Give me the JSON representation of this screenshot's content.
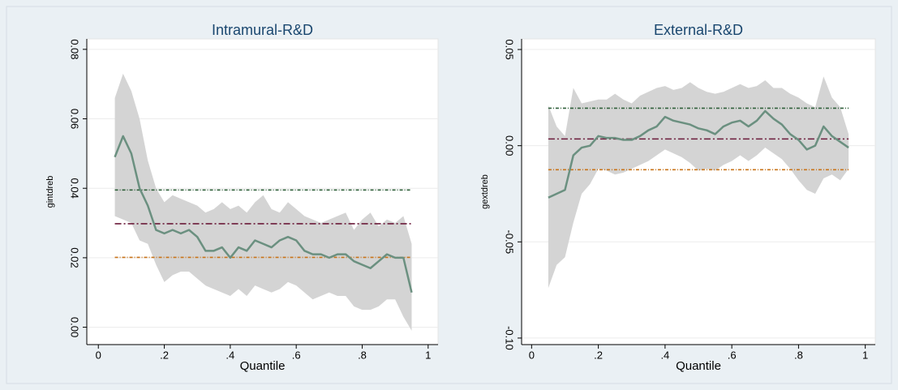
{
  "chart_data": [
    {
      "type": "line",
      "title": "Intramural-R&D",
      "x_label": "Quantile",
      "y_label": "gintdreb",
      "x": [
        0.05,
        0.075,
        0.1,
        0.125,
        0.15,
        0.175,
        0.2,
        0.225,
        0.25,
        0.275,
        0.3,
        0.325,
        0.35,
        0.375,
        0.4,
        0.425,
        0.45,
        0.475,
        0.5,
        0.525,
        0.55,
        0.575,
        0.6,
        0.625,
        0.65,
        0.675,
        0.7,
        0.725,
        0.75,
        0.775,
        0.8,
        0.825,
        0.85,
        0.875,
        0.9,
        0.925,
        0.95
      ],
      "series": [
        {
          "color": "#6b9080",
          "values": [
            0.049,
            0.055,
            0.05,
            0.04,
            0.035,
            0.028,
            0.027,
            0.028,
            0.027,
            0.028,
            0.026,
            0.022,
            0.022,
            0.023,
            0.02,
            0.023,
            0.022,
            0.025,
            0.024,
            0.023,
            0.025,
            0.026,
            0.025,
            0.022,
            0.021,
            0.021,
            0.02,
            0.021,
            0.021,
            0.019,
            0.018,
            0.017,
            0.019,
            0.021,
            0.02,
            0.02,
            0.01
          ]
        }
      ],
      "band": {
        "color": "#d4d4d4",
        "upper": [
          0.066,
          0.073,
          0.068,
          0.06,
          0.048,
          0.04,
          0.036,
          0.038,
          0.037,
          0.036,
          0.035,
          0.033,
          0.034,
          0.036,
          0.034,
          0.035,
          0.033,
          0.036,
          0.038,
          0.034,
          0.033,
          0.036,
          0.034,
          0.032,
          0.031,
          0.03,
          0.031,
          0.032,
          0.033,
          0.028,
          0.031,
          0.033,
          0.029,
          0.031,
          0.03,
          0.032,
          0.024
        ],
        "lower": [
          0.032,
          0.031,
          0.03,
          0.025,
          0.024,
          0.018,
          0.013,
          0.015,
          0.016,
          0.016,
          0.014,
          0.012,
          0.011,
          0.01,
          0.009,
          0.011,
          0.009,
          0.012,
          0.011,
          0.01,
          0.011,
          0.013,
          0.012,
          0.01,
          0.008,
          0.009,
          0.01,
          0.009,
          0.009,
          0.006,
          0.005,
          0.005,
          0.006,
          0.008,
          0.008,
          0.003,
          -0.001
        ]
      },
      "reference_lines": [
        {
          "value": 0.0395,
          "color": "#2f5f3a",
          "dash": "4 2 1 2"
        },
        {
          "value": 0.0298,
          "color": "#6b1b3a",
          "dash": "8 3 2 3"
        },
        {
          "value": 0.0201,
          "color": "#c8741a",
          "dash": "4 2 1 2"
        }
      ],
      "xlim": [
        -0.035,
        1.03
      ],
      "ylim": [
        -0.005,
        0.083
      ],
      "xticks": [
        0,
        {
          "value": 0.2,
          "label": ".2"
        },
        {
          "value": 0.4,
          "label": ".4"
        },
        {
          "value": 0.6,
          "label": ".6"
        },
        {
          "value": 0.8,
          "label": ".8"
        },
        1
      ],
      "yticks": [
        {
          "value": 0,
          "label": "0.00"
        },
        {
          "value": 0.02,
          "label": "0.02"
        },
        {
          "value": 0.04,
          "label": "0.04"
        },
        {
          "value": 0.06,
          "label": "0.06"
        },
        {
          "value": 0.08,
          "label": "0.08"
        }
      ],
      "grid": true
    },
    {
      "type": "line",
      "title": "External-R&D",
      "x_label": "Quantile",
      "y_label": "gextdreb",
      "x": [
        0.05,
        0.075,
        0.1,
        0.125,
        0.15,
        0.175,
        0.2,
        0.225,
        0.25,
        0.275,
        0.3,
        0.325,
        0.35,
        0.375,
        0.4,
        0.425,
        0.45,
        0.475,
        0.5,
        0.525,
        0.55,
        0.575,
        0.6,
        0.625,
        0.65,
        0.675,
        0.7,
        0.725,
        0.75,
        0.775,
        0.8,
        0.825,
        0.85,
        0.875,
        0.9,
        0.925,
        0.95
      ],
      "series": [
        {
          "color": "#6b9080",
          "values": [
            -0.027,
            -0.025,
            -0.023,
            -0.005,
            -0.001,
            0.0,
            0.005,
            0.004,
            0.004,
            0.003,
            0.003,
            0.005,
            0.008,
            0.01,
            0.015,
            0.013,
            0.012,
            0.011,
            0.009,
            0.008,
            0.006,
            0.01,
            0.012,
            0.013,
            0.01,
            0.013,
            0.018,
            0.014,
            0.011,
            0.006,
            0.003,
            -0.002,
            0.0,
            0.01,
            0.005,
            0.002,
            -0.001
          ]
        }
      ],
      "band": {
        "color": "#d4d4d4",
        "upper": [
          0.021,
          0.01,
          0.005,
          0.03,
          0.022,
          0.023,
          0.024,
          0.024,
          0.027,
          0.024,
          0.022,
          0.026,
          0.028,
          0.03,
          0.031,
          0.029,
          0.03,
          0.033,
          0.03,
          0.028,
          0.027,
          0.028,
          0.03,
          0.032,
          0.03,
          0.031,
          0.034,
          0.03,
          0.03,
          0.027,
          0.025,
          0.022,
          0.02,
          0.036,
          0.025,
          0.02,
          0.006
        ],
        "lower": [
          -0.074,
          -0.062,
          -0.058,
          -0.04,
          -0.025,
          -0.02,
          -0.012,
          -0.013,
          -0.015,
          -0.014,
          -0.012,
          -0.01,
          -0.008,
          -0.005,
          -0.002,
          -0.004,
          -0.006,
          -0.009,
          -0.013,
          -0.012,
          -0.013,
          -0.01,
          -0.008,
          -0.005,
          -0.008,
          -0.005,
          -0.001,
          -0.004,
          -0.007,
          -0.012,
          -0.018,
          -0.023,
          -0.025,
          -0.017,
          -0.015,
          -0.018,
          -0.012
        ]
      },
      "reference_lines": [
        {
          "value": 0.0195,
          "color": "#2f5f3a",
          "dash": "4 2 1 2"
        },
        {
          "value": 0.0035,
          "color": "#6b1b3a",
          "dash": "8 3 2 3"
        },
        {
          "value": -0.0125,
          "color": "#c8741a",
          "dash": "4 2 1 2"
        }
      ],
      "xlim": [
        -0.03,
        1.03
      ],
      "ylim": [
        -0.1034,
        0.0555
      ],
      "xticks": [
        0,
        {
          "value": 0.2,
          "label": ".2"
        },
        {
          "value": 0.4,
          "label": ".4"
        },
        {
          "value": 0.6,
          "label": ".6"
        },
        {
          "value": 0.8,
          "label": ".8"
        },
        1
      ],
      "yticks": [
        {
          "value": -0.1,
          "label": "-0.10"
        },
        {
          "value": -0.05,
          "label": "-0.05"
        },
        {
          "value": 0,
          "label": "0.00"
        },
        {
          "value": 0.05,
          "label": "0.05"
        }
      ],
      "grid": true
    }
  ]
}
